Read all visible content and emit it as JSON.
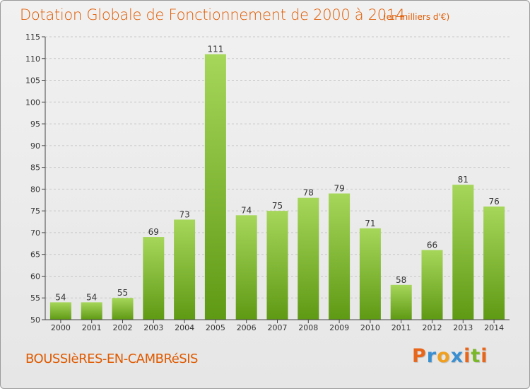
{
  "title": "Dotation Globale de Fonctionnement de 2000 à 2014",
  "subtitle": "(en milliers d'€)",
  "commune": "BOUSSIèRES-EN-CAMBRéSIS",
  "logo": {
    "text": "Proxiti",
    "letters": [
      "P",
      "r",
      "o",
      "x",
      "i",
      "t",
      "i"
    ],
    "colors": [
      "#e8661a",
      "#3a8fd0",
      "#f0a020",
      "#3a8fd0",
      "#e8661a",
      "#7ab82a",
      "#e8661a"
    ]
  },
  "colors": {
    "bar_light": "#a6d65a",
    "bar_dark": "#5f9a14",
    "text_orange": "#e05a00",
    "grid": "#c8c8c8"
  },
  "chart_data": {
    "type": "bar",
    "categories": [
      "2000",
      "2001",
      "2002",
      "2003",
      "2004",
      "2005",
      "2006",
      "2007",
      "2008",
      "2009",
      "2010",
      "2011",
      "2012",
      "2013",
      "2014"
    ],
    "values": [
      54,
      54,
      55,
      69,
      73,
      111,
      74,
      75,
      78,
      79,
      71,
      58,
      66,
      81,
      76
    ],
    "title": "Dotation Globale de Fonctionnement de 2000 à 2014",
    "subtitle": "(en milliers d'€)",
    "xlabel": "",
    "ylabel": "",
    "ylim": [
      50,
      115
    ],
    "yticks": [
      50,
      55,
      60,
      65,
      70,
      75,
      80,
      85,
      90,
      95,
      100,
      105,
      110,
      115
    ],
    "grid": "horizontal dashed",
    "legend": "none"
  }
}
